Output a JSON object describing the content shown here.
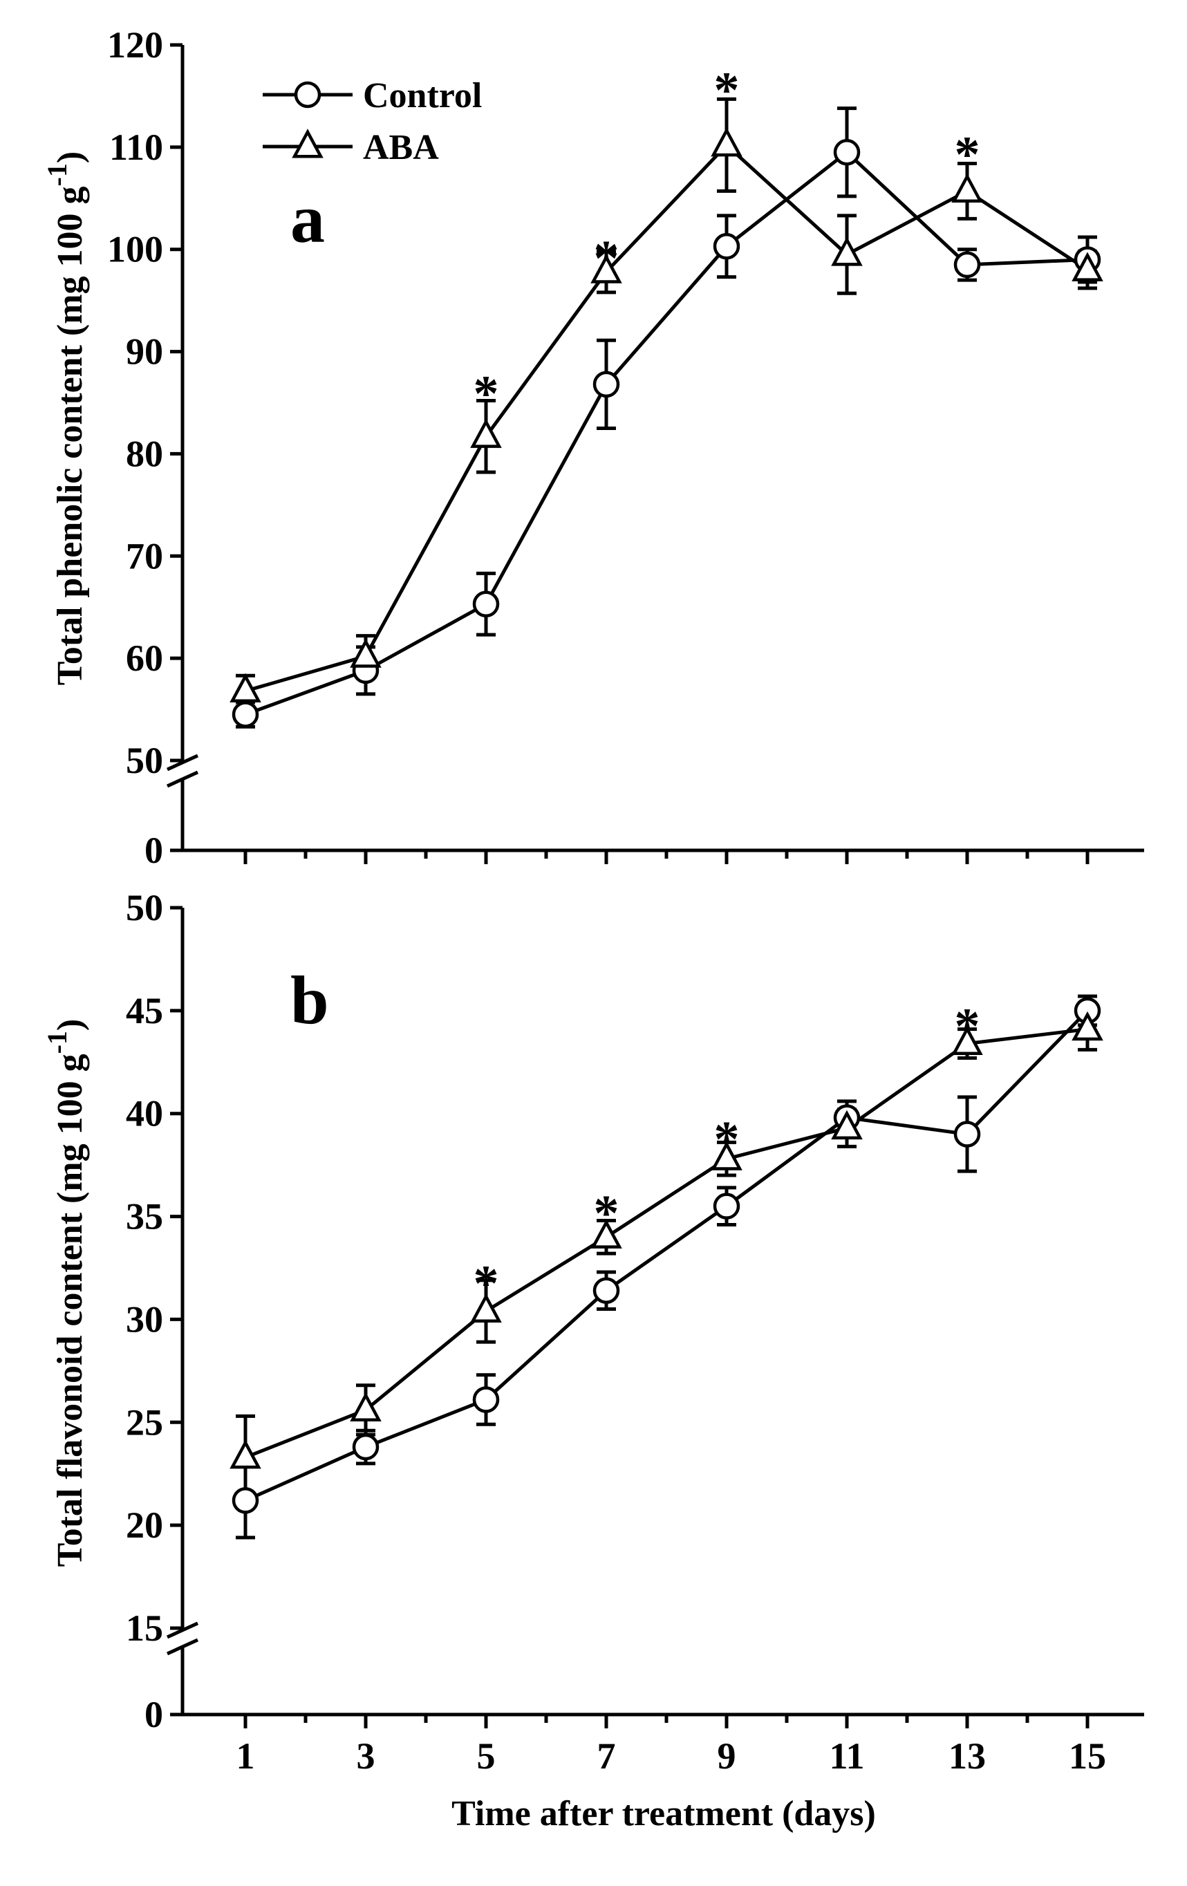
{
  "chart_data": [
    {
      "type": "line",
      "panel_label": "a",
      "title": "",
      "ylabel": "Total phenolic content (mg 100 g",
      "ylabel_sup": "-1",
      "ylabel_close": ")",
      "xlabel": "",
      "x": [
        1,
        3,
        5,
        7,
        9,
        11,
        13,
        15
      ],
      "ylim": [
        0,
        120
      ],
      "axis_break": [
        0,
        50
      ],
      "yticks": [
        0,
        50,
        60,
        70,
        80,
        90,
        100,
        110,
        120
      ],
      "legend": {
        "placement": "top-left"
      },
      "series": [
        {
          "name": "Control",
          "marker": "circle",
          "values": [
            54.5,
            58.8,
            65.3,
            86.8,
            100.3,
            109.5,
            98.5,
            99.0
          ],
          "errors": [
            1.2,
            2.3,
            3.0,
            4.3,
            3.0,
            4.3,
            1.5,
            2.2
          ]
        },
        {
          "name": "ABA",
          "marker": "triangle",
          "values": [
            56.8,
            60.2,
            81.7,
            97.8,
            110.2,
            99.5,
            105.7,
            98.0
          ],
          "errors": [
            1.5,
            2.0,
            3.5,
            2.0,
            4.5,
            3.8,
            2.7,
            1.8
          ]
        }
      ],
      "significance": {
        "symbol": "*",
        "x": [
          5,
          7,
          9,
          13
        ],
        "y": [
          86.8,
          100.0,
          116.5,
          110.2
        ]
      }
    },
    {
      "type": "line",
      "panel_label": "b",
      "title": "",
      "ylabel": "Total flavonoid content (mg 100 g",
      "ylabel_sup": "-1",
      "ylabel_close": ")",
      "xlabel": "Time after treatment (days)",
      "x": [
        1,
        3,
        5,
        7,
        9,
        11,
        13,
        15
      ],
      "xticks": [
        "1",
        "3",
        "5",
        "7",
        "9",
        "11",
        "13",
        "15"
      ],
      "ylim": [
        0,
        50
      ],
      "axis_break": [
        0,
        15
      ],
      "yticks": [
        0,
        15,
        20,
        25,
        30,
        35,
        40,
        45,
        50
      ],
      "series": [
        {
          "name": "Control",
          "marker": "circle",
          "values": [
            21.2,
            23.8,
            26.1,
            31.4,
            35.5,
            39.8,
            39.0,
            45.0
          ],
          "errors": [
            1.8,
            0.8,
            1.2,
            0.9,
            0.9,
            0.8,
            1.8,
            0.7
          ]
        },
        {
          "name": "ABA",
          "marker": "triangle",
          "values": [
            23.3,
            25.6,
            30.4,
            34.0,
            37.8,
            39.3,
            43.4,
            44.1
          ],
          "errors": [
            2.0,
            1.2,
            1.5,
            0.8,
            0.8,
            0.9,
            0.7,
            1.0
          ]
        }
      ],
      "significance": {
        "symbol": "*",
        "x": [
          5,
          7,
          9,
          13
        ],
        "y": [
          32.2,
          35.6,
          39.2,
          44.7
        ]
      }
    }
  ]
}
